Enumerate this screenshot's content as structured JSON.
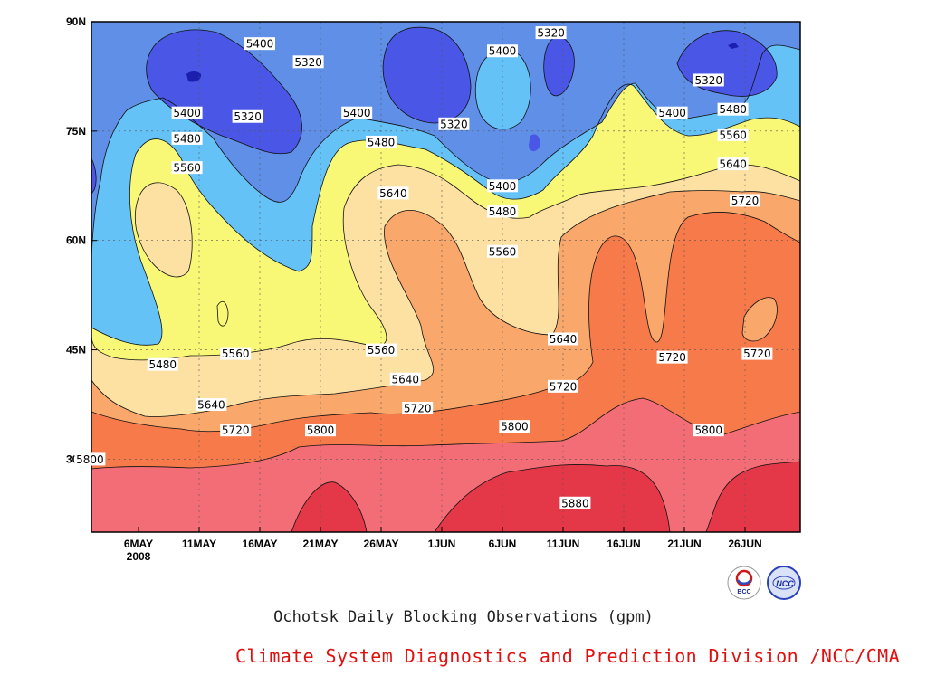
{
  "chart_data": {
    "type": "contour",
    "title": "Ochotsk Daily Blocking Observations (gpm)",
    "subtitle": "Climate System Diagnostics and Prediction Division /NCC/CMA",
    "x_ticks": [
      "6MAY",
      "11MAY",
      "16MAY",
      "21MAY",
      "26MAY",
      "1JUN",
      "6JUN",
      "11JUN",
      "16JUN",
      "21JUN",
      "26JUN"
    ],
    "x_year_label": "2008",
    "x_start": "2008-05-06",
    "y_ticks": [
      "30N",
      "45N",
      "60N",
      "75N",
      "90N"
    ],
    "y_range": [
      20,
      90
    ],
    "levels": [
      5320,
      5400,
      5480,
      5560,
      5640,
      5720,
      5800,
      5880
    ],
    "level_colors": [
      "#4a56e6",
      "#5f8fe6",
      "#65c2f7",
      "#f8f876",
      "#fce1a3",
      "#f9a76a",
      "#f77a4a",
      "#f36d76",
      "#e43848"
    ],
    "contour_labels": [
      {
        "text": "5400",
        "date": "2008-05-16",
        "lat": 87.0
      },
      {
        "text": "5320",
        "date": "2008-05-20",
        "lat": 84.5
      },
      {
        "text": "5400",
        "date": "2008-05-10",
        "lat": 77.5
      },
      {
        "text": "5480",
        "date": "2008-05-10",
        "lat": 74.0
      },
      {
        "text": "5560",
        "date": "2008-05-10",
        "lat": 70.0
      },
      {
        "text": "5320",
        "date": "2008-05-15",
        "lat": 77.0
      },
      {
        "text": "5400",
        "date": "2008-05-24",
        "lat": 77.5
      },
      {
        "text": "5480",
        "date": "2008-05-26",
        "lat": 73.5
      },
      {
        "text": "5320",
        "date": "2008-06-01",
        "lat": 76.0
      },
      {
        "text": "5400",
        "date": "2008-06-05",
        "lat": 86.0
      },
      {
        "text": "5320",
        "date": "2008-06-09",
        "lat": 88.5
      },
      {
        "text": "5640",
        "date": "2008-05-27",
        "lat": 66.5
      },
      {
        "text": "5400",
        "date": "2008-06-05",
        "lat": 67.5
      },
      {
        "text": "5480",
        "date": "2008-06-05",
        "lat": 64.0
      },
      {
        "text": "5560",
        "date": "2008-06-05",
        "lat": 58.5
      },
      {
        "text": "5400",
        "date": "2008-06-19",
        "lat": 77.5
      },
      {
        "text": "5320",
        "date": "2008-06-22",
        "lat": 82.0
      },
      {
        "text": "5480",
        "date": "2008-06-24",
        "lat": 78.0
      },
      {
        "text": "5560",
        "date": "2008-06-24",
        "lat": 74.5
      },
      {
        "text": "5640",
        "date": "2008-06-24",
        "lat": 70.5
      },
      {
        "text": "5720",
        "date": "2008-06-25",
        "lat": 65.5
      },
      {
        "text": "5480",
        "date": "2008-05-08",
        "lat": 43.0
      },
      {
        "text": "5560",
        "date": "2008-05-14",
        "lat": 44.5
      },
      {
        "text": "5560",
        "date": "2008-05-26",
        "lat": 45.0
      },
      {
        "text": "5640",
        "date": "2008-05-28",
        "lat": 41.0
      },
      {
        "text": "5640",
        "date": "2008-06-10",
        "lat": 46.5
      },
      {
        "text": "5720",
        "date": "2008-06-19",
        "lat": 44.0
      },
      {
        "text": "5720",
        "date": "2008-06-26",
        "lat": 44.5
      },
      {
        "text": "5640",
        "date": "2008-05-12",
        "lat": 37.5
      },
      {
        "text": "5720",
        "date": "2008-05-14",
        "lat": 34.0
      },
      {
        "text": "5720",
        "date": "2008-05-29",
        "lat": 37.0
      },
      {
        "text": "5720",
        "date": "2008-06-10",
        "lat": 40.0
      },
      {
        "text": "5800",
        "date": "2008-05-21",
        "lat": 34.0
      },
      {
        "text": "5800",
        "date": "2008-06-06",
        "lat": 34.5
      },
      {
        "text": "5800",
        "date": "2008-06-22",
        "lat": 34.0
      },
      {
        "text": "5800",
        "date": "2008-05-02",
        "lat": 30.0
      },
      {
        "text": "5880",
        "date": "2008-06-11",
        "lat": 24.0
      }
    ]
  },
  "logos": {
    "bcc": {
      "text": "BCC"
    },
    "ncc": {
      "text": "NCC"
    }
  }
}
